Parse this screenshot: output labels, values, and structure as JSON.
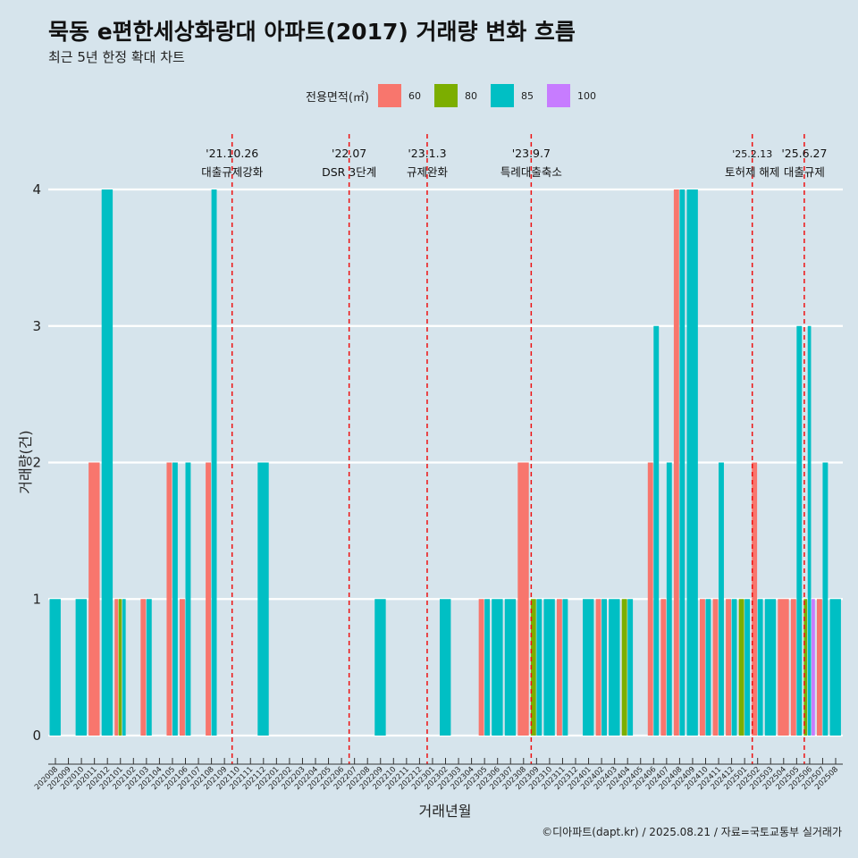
{
  "title": "묵동 e편한세상화랑대 아파트(2017) 거래량 변화 흐름",
  "subtitle": "최근 5년 한정 확대 차트",
  "caption": "©디아파트(dapt.kr) / 2025.08.21 / 자료=국토교통부 실거래가",
  "legend": {
    "title": "전용면적(㎡)",
    "items": [
      {
        "label": "60",
        "color": "#f8766d"
      },
      {
        "label": "80",
        "color": "#7cae00"
      },
      {
        "label": "85",
        "color": "#00bfc4"
      },
      {
        "label": "100",
        "color": "#c77cff"
      }
    ]
  },
  "chart_data": {
    "type": "bar",
    "xlabel": "거래년월",
    "ylabel": "거래량(건)",
    "ylim": [
      0,
      4
    ],
    "yticks": [
      0,
      1,
      2,
      3,
      4
    ],
    "grid": true,
    "legend_position": "top",
    "categories": [
      "202008",
      "202009",
      "202010",
      "202011",
      "202012",
      "202101",
      "202102",
      "202103",
      "202104",
      "202105",
      "202106",
      "202107",
      "202108",
      "202109",
      "202110",
      "202111",
      "202112",
      "202201",
      "202202",
      "202203",
      "202204",
      "202205",
      "202206",
      "202207",
      "202208",
      "202209",
      "202210",
      "202211",
      "202212",
      "202301",
      "202302",
      "202303",
      "202304",
      "202305",
      "202306",
      "202307",
      "202308",
      "202309",
      "202310",
      "202311",
      "202312",
      "202401",
      "202402",
      "202403",
      "202404",
      "202405",
      "202406",
      "202407",
      "202408",
      "202409",
      "202410",
      "202411",
      "202412",
      "202501",
      "202502",
      "202503",
      "202504",
      "202505",
      "202506",
      "202507",
      "202508"
    ],
    "series": [
      {
        "name": "60",
        "values": [
          0,
          0,
          0,
          2,
          0,
          1,
          0,
          1,
          0,
          2,
          1,
          0,
          2,
          0,
          0,
          0,
          0,
          0,
          0,
          0,
          0,
          0,
          0,
          0,
          0,
          0,
          0,
          0,
          0,
          0,
          0,
          0,
          0,
          1,
          0,
          0,
          2,
          0,
          0,
          1,
          0,
          0,
          1,
          0,
          0,
          0,
          2,
          1,
          4,
          0,
          1,
          1,
          1,
          0,
          2,
          0,
          1,
          1,
          0,
          1,
          0
        ]
      },
      {
        "name": "80",
        "values": [
          0,
          0,
          0,
          0,
          0,
          1,
          0,
          0,
          0,
          0,
          0,
          0,
          0,
          0,
          0,
          0,
          0,
          0,
          0,
          0,
          0,
          0,
          0,
          0,
          0,
          0,
          0,
          0,
          0,
          0,
          0,
          0,
          0,
          0,
          0,
          0,
          0,
          1,
          0,
          0,
          0,
          0,
          0,
          0,
          1,
          0,
          0,
          0,
          0,
          0,
          0,
          0,
          0,
          1,
          0,
          0,
          0,
          0,
          1,
          0,
          0
        ]
      },
      {
        "name": "85",
        "values": [
          1,
          0,
          1,
          0,
          4,
          1,
          0,
          1,
          0,
          2,
          2,
          0,
          4,
          0,
          0,
          0,
          2,
          0,
          0,
          0,
          0,
          0,
          0,
          0,
          0,
          1,
          0,
          0,
          0,
          0,
          1,
          0,
          0,
          1,
          1,
          1,
          0,
          1,
          1,
          1,
          0,
          1,
          1,
          1,
          1,
          0,
          3,
          2,
          4,
          4,
          1,
          2,
          1,
          1,
          1,
          1,
          0,
          3,
          3,
          2,
          1
        ]
      },
      {
        "name": "100",
        "values": [
          0,
          0,
          0,
          0,
          0,
          0,
          0,
          0,
          0,
          0,
          0,
          0,
          0,
          0,
          0,
          0,
          0,
          0,
          0,
          0,
          0,
          0,
          0,
          0,
          0,
          0,
          0,
          0,
          0,
          0,
          0,
          0,
          0,
          0,
          0,
          0,
          0,
          0,
          0,
          0,
          0,
          0,
          0,
          0,
          0,
          0,
          0,
          0,
          0,
          0,
          0,
          0,
          0,
          0,
          0,
          0,
          0,
          0,
          1,
          0,
          0
        ]
      }
    ],
    "annotations": [
      {
        "x": "202110",
        "date": "'21.10.26",
        "label": "대출규제강화"
      },
      {
        "x": "202207",
        "date": "'22.07",
        "label": "DSR 3단계"
      },
      {
        "x": "202301",
        "date": "'23.1.3",
        "label": "규제완화"
      },
      {
        "x": "202309",
        "date": "'23.9.7",
        "label": "특례대출축소"
      },
      {
        "x": "202502",
        "date": "'25.2.13",
        "label": "토허제 해제"
      },
      {
        "x": "202506",
        "date": "'25.6.27",
        "label": "대출규제"
      }
    ]
  }
}
